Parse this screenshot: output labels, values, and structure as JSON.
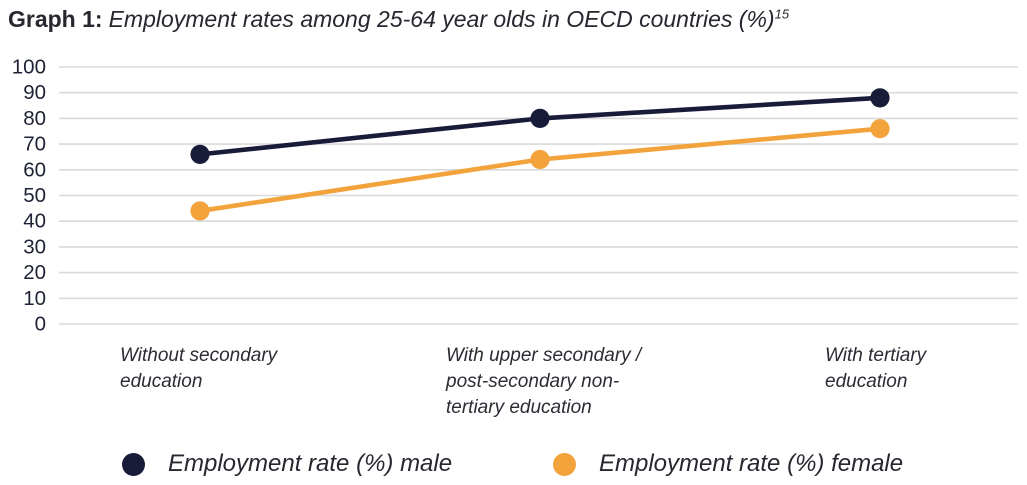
{
  "title": {
    "prefix": "Graph 1:",
    "text": "Employment rates among 25-64 year olds in OECD countries (%)",
    "superscript": "15"
  },
  "colors": {
    "background": "#ffffff",
    "gridline": "#d9d9d9",
    "axis_text": "#1e2235",
    "label_text": "#2b2c34",
    "male": "#181c38",
    "female": "#f2a33c"
  },
  "chart_data": {
    "type": "line",
    "title": "Employment rates among 25-64 year olds in OECD countries (%)",
    "categories": [
      "Without secondary education",
      "With upper secondary / post-secondary non-tertiary education",
      "With tertiary education"
    ],
    "category_label_lines": [
      [
        "Without secondary",
        "education"
      ],
      [
        "With upper secondary /",
        "post-secondary non-",
        "tertiary education"
      ],
      [
        "With tertiary",
        "education"
      ]
    ],
    "series": [
      {
        "name": "Employment rate (%) male",
        "color": "#181c38",
        "values": [
          66,
          80,
          88
        ]
      },
      {
        "name": "Employment rate (%) female",
        "color": "#f2a33c",
        "values": [
          44,
          64,
          76
        ]
      }
    ],
    "xlabel": "",
    "ylabel": "",
    "ylim": [
      0,
      100
    ],
    "ytick_step": 10,
    "yticks": [
      0,
      10,
      20,
      30,
      40,
      50,
      60,
      70,
      80,
      90,
      100
    ],
    "grid": "horizontal",
    "legend_position": "bottom"
  }
}
